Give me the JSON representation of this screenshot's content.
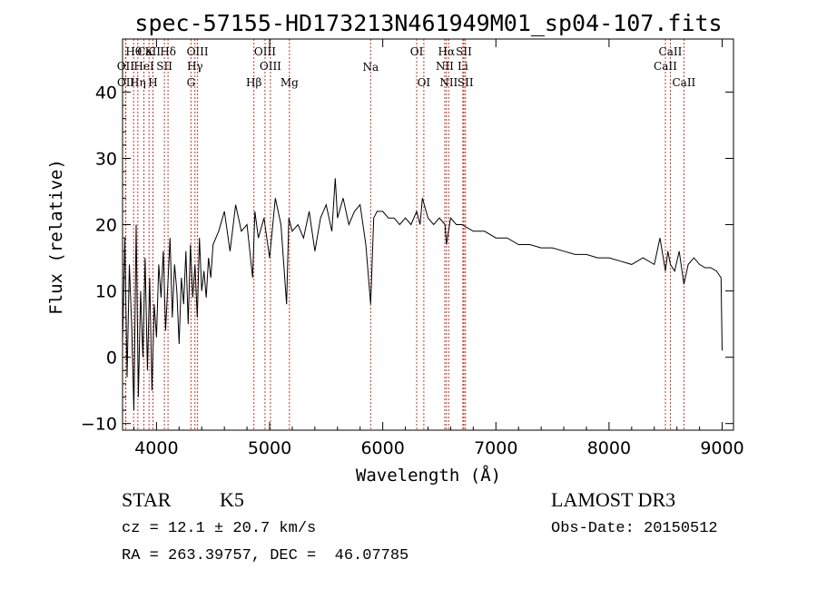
{
  "chart_data": {
    "type": "line",
    "title": "spec-57155-HD173213N461949M01_sp04-107.fits",
    "xlabel": "Wavelength (Å)",
    "ylabel": "Flux (relative)",
    "xlim": [
      3700,
      9100
    ],
    "ylim": [
      -11,
      48
    ],
    "xticks": [
      4000,
      5000,
      6000,
      7000,
      8000,
      9000
    ],
    "yticks": [
      -10,
      0,
      10,
      20,
      30,
      40
    ],
    "series": [
      {
        "name": "flux",
        "x": [
          3700,
          3720,
          3740,
          3760,
          3780,
          3800,
          3820,
          3840,
          3860,
          3880,
          3900,
          3920,
          3940,
          3960,
          3980,
          4000,
          4020,
          4040,
          4060,
          4080,
          4100,
          4120,
          4140,
          4160,
          4180,
          4200,
          4220,
          4240,
          4260,
          4280,
          4300,
          4320,
          4340,
          4360,
          4380,
          4400,
          4420,
          4440,
          4460,
          4480,
          4500,
          4550,
          4600,
          4650,
          4700,
          4750,
          4800,
          4850,
          4870,
          4900,
          4950,
          5000,
          5050,
          5100,
          5150,
          5170,
          5200,
          5250,
          5300,
          5350,
          5400,
          5450,
          5500,
          5550,
          5580,
          5600,
          5650,
          5700,
          5750,
          5800,
          5850,
          5893,
          5920,
          5950,
          6000,
          6050,
          6100,
          6150,
          6200,
          6250,
          6300,
          6330,
          6350,
          6400,
          6450,
          6500,
          6550,
          6563,
          6600,
          6650,
          6700,
          6800,
          6900,
          7000,
          7100,
          7200,
          7300,
          7400,
          7500,
          7600,
          7700,
          7800,
          7900,
          8000,
          8100,
          8200,
          8300,
          8400,
          8450,
          8498,
          8520,
          8542,
          8580,
          8620,
          8662,
          8700,
          8750,
          8800,
          8850,
          8900,
          8950,
          8990,
          9000
        ],
        "values": [
          2,
          18,
          -3,
          14,
          5,
          -8,
          20,
          -6,
          10,
          0,
          15,
          -2,
          12,
          -5,
          8,
          3,
          14,
          9,
          16,
          4,
          11,
          18,
          6,
          14,
          10,
          2,
          12,
          8,
          16,
          5,
          17,
          9,
          14,
          6,
          18,
          10,
          13,
          9,
          15,
          12,
          17,
          19,
          22,
          16,
          23,
          19,
          20,
          12,
          22,
          18,
          21,
          15,
          24,
          20,
          8,
          21,
          19,
          20,
          18,
          22,
          16,
          21,
          23,
          19,
          27,
          21,
          24,
          20,
          22,
          23,
          17,
          8,
          21,
          22,
          22,
          21,
          21,
          20,
          21,
          20,
          22,
          20,
          24,
          21,
          20,
          21,
          20,
          17,
          21,
          20,
          20,
          19,
          19,
          18,
          18,
          17,
          17,
          16.5,
          16.5,
          16,
          15.5,
          15.5,
          15,
          15,
          14.5,
          14,
          15,
          14,
          18,
          13,
          16,
          14,
          13,
          16,
          11,
          14,
          15,
          14,
          13.5,
          13.5,
          13,
          12,
          1
        ]
      }
    ],
    "lines": [
      {
        "label": "Hθ",
        "x": 3798,
        "row": 0
      },
      {
        "label": "CaII",
        "x": 3934,
        "row": 0
      },
      {
        "label": "K",
        "x": 3934,
        "row": 0
      },
      {
        "label": "Hδ",
        "x": 4102,
        "row": 0
      },
      {
        "label": "OIII",
        "x": 4363,
        "row": 0
      },
      {
        "label": "OIII",
        "x": 4959,
        "row": 0
      },
      {
        "label": "OI",
        "x": 6300,
        "row": 0
      },
      {
        "label": "Hα",
        "x": 6563,
        "row": 0
      },
      {
        "label": "SII",
        "x": 6717,
        "row": 0
      },
      {
        "label": "CaII",
        "x": 8542,
        "row": 0
      },
      {
        "label": "OII",
        "x": 3727,
        "row": 1
      },
      {
        "label": "HeI",
        "x": 3889,
        "row": 1
      },
      {
        "label": "SII",
        "x": 4070,
        "row": 1
      },
      {
        "label": "Hγ",
        "x": 4340,
        "row": 1
      },
      {
        "label": "OIII",
        "x": 5007,
        "row": 1
      },
      {
        "label": "NII",
        "x": 6548,
        "row": 1
      },
      {
        "label": "Li",
        "x": 6708,
        "row": 1
      },
      {
        "label": "CaII",
        "x": 8498,
        "row": 1
      },
      {
        "label": "OII",
        "x": 3729,
        "row": 2
      },
      {
        "label": "Hη",
        "x": 3835,
        "row": 2
      },
      {
        "label": "H",
        "x": 3969,
        "row": 2
      },
      {
        "label": "G",
        "x": 4305,
        "row": 2
      },
      {
        "label": "Hβ",
        "x": 4861,
        "row": 2
      },
      {
        "label": "Mg",
        "x": 5175,
        "row": 2
      },
      {
        "label": "Na",
        "x": 5893,
        "row": 3
      },
      {
        "label": "OI",
        "x": 6363,
        "row": 2
      },
      {
        "label": "NII",
        "x": 6583,
        "row": 2
      },
      {
        "label": "SII",
        "x": 6731,
        "row": 2
      },
      {
        "label": "CaII",
        "x": 8662,
        "row": 2
      }
    ]
  },
  "info": {
    "object_class": "STAR",
    "subclass": "K5",
    "survey": "LAMOST DR3",
    "redshift": "cz = 12.1 ± 20.7 km/s",
    "obs_date": "Obs-Date: 20150512",
    "coords": "RA = 263.39757, DEC =  46.07785"
  }
}
